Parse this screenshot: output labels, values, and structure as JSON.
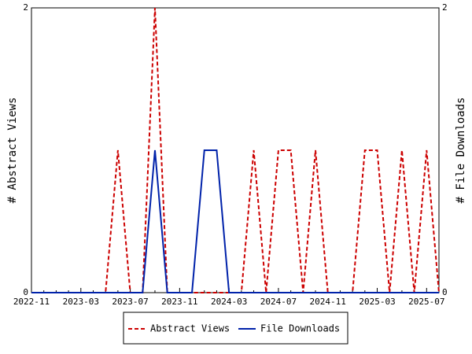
{
  "chart_data": {
    "type": "line",
    "categories": [
      "2022-11",
      null,
      null,
      null,
      "2023-03",
      null,
      null,
      null,
      "2023-07",
      null,
      null,
      null,
      "2023-11",
      null,
      null,
      null,
      "2024-03",
      null,
      null,
      null,
      "2024-07",
      null,
      null,
      null,
      "2024-11",
      null,
      null,
      null,
      "2025-03",
      null,
      null,
      null,
      "2025-07",
      null
    ],
    "series": [
      {
        "name": "Abstract Views",
        "color": "#cc0000",
        "dash": true,
        "axis": "y",
        "values": [
          0,
          0,
          0,
          0,
          0,
          0,
          0,
          1,
          0,
          0,
          2,
          0,
          0,
          0,
          0,
          0,
          0,
          0,
          1,
          0,
          1,
          1,
          0,
          1,
          0,
          0,
          0,
          1,
          1,
          0,
          1,
          0,
          1,
          0
        ]
      },
      {
        "name": "File Downloads",
        "color": "#0022aa",
        "dash": false,
        "axis": "y2",
        "values": [
          0,
          0,
          0,
          0,
          0,
          0,
          0,
          0,
          0,
          0,
          1,
          0,
          0,
          0,
          1,
          1,
          0,
          0,
          0,
          0,
          0,
          0,
          0,
          0,
          0,
          0,
          0,
          0,
          0,
          0,
          0,
          0,
          0,
          0
        ]
      }
    ],
    "ylabel": "# Abstract Views",
    "y2label": "# File Downloads",
    "ylim": [
      0,
      2
    ],
    "yticks": [
      0,
      2
    ],
    "y2lim": [
      0,
      2
    ],
    "y2ticks": [
      0,
      2
    ]
  }
}
